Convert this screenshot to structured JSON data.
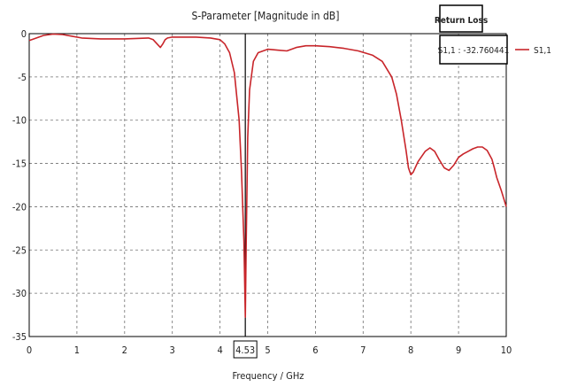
{
  "chart_data": {
    "type": "line",
    "title": "S-Parameter [Magnitude in dB]",
    "xlabel": "Frequency / GHz",
    "ylabel": "",
    "xlim": [
      0,
      10
    ],
    "ylim": [
      -35,
      0
    ],
    "x_ticks": [
      0,
      1,
      2,
      3,
      4,
      5,
      6,
      7,
      8,
      9,
      10
    ],
    "y_ticks": [
      0,
      -5,
      -10,
      -15,
      -20,
      -25,
      -30,
      -35
    ],
    "grid": true,
    "legend": {
      "position": "right",
      "entries": [
        "S1,1"
      ]
    },
    "marker": {
      "x": 4.53,
      "x_label": "4.53",
      "box_title": "Return Loss",
      "box_value": "S1,1 : -32.760441"
    },
    "colors": {
      "series": "#c8252a",
      "grid": "#707070",
      "axis": "#000000"
    },
    "series": [
      {
        "name": "S1,1",
        "x": [
          0,
          0.1,
          0.3,
          0.5,
          0.7,
          0.9,
          1.1,
          1.5,
          2.0,
          2.5,
          2.6,
          2.7,
          2.75,
          2.8,
          2.85,
          2.9,
          3.0,
          3.5,
          3.8,
          4.0,
          4.1,
          4.2,
          4.3,
          4.4,
          4.45,
          4.5,
          4.53,
          4.55,
          4.58,
          4.62,
          4.7,
          4.8,
          5.0,
          5.2,
          5.4,
          5.6,
          5.8,
          6.0,
          6.3,
          6.6,
          6.9,
          7.2,
          7.4,
          7.6,
          7.7,
          7.8,
          7.9,
          7.95,
          8.0,
          8.05,
          8.15,
          8.3,
          8.4,
          8.5,
          8.6,
          8.7,
          8.8,
          8.9,
          9.0,
          9.1,
          9.2,
          9.3,
          9.4,
          9.5,
          9.6,
          9.7,
          9.75,
          9.8,
          9.9,
          10.0
        ],
        "values": [
          -0.8,
          -0.6,
          -0.2,
          -0.05,
          -0.1,
          -0.3,
          -0.5,
          -0.6,
          -0.6,
          -0.5,
          -0.7,
          -1.3,
          -1.6,
          -1.2,
          -0.7,
          -0.5,
          -0.4,
          -0.4,
          -0.5,
          -0.7,
          -1.2,
          -2.2,
          -4.5,
          -10.0,
          -16.0,
          -24.0,
          -32.76,
          -24.0,
          -12.0,
          -6.5,
          -3.2,
          -2.2,
          -1.8,
          -1.9,
          -2.0,
          -1.6,
          -1.4,
          -1.4,
          -1.5,
          -1.7,
          -2.0,
          -2.5,
          -3.2,
          -5.0,
          -7.0,
          -10.0,
          -13.5,
          -15.5,
          -16.3,
          -16.0,
          -14.8,
          -13.6,
          -13.2,
          -13.6,
          -14.6,
          -15.5,
          -15.8,
          -15.2,
          -14.3,
          -13.9,
          -13.6,
          -13.3,
          -13.1,
          -13.1,
          -13.5,
          -14.5,
          -15.5,
          -16.6,
          -18.2,
          -20.0
        ]
      }
    ]
  }
}
